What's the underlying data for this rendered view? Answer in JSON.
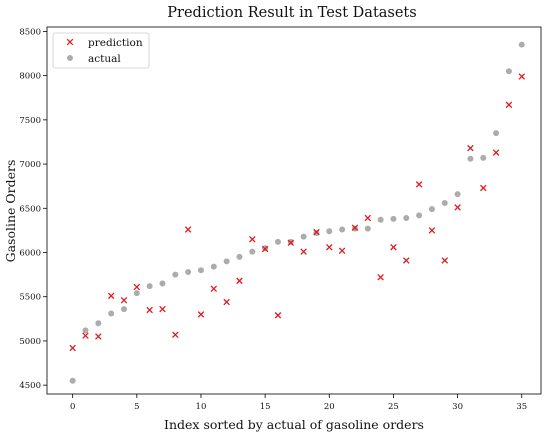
{
  "chart_data": {
    "type": "scatter",
    "title": "Prediction Result in Test Datasets",
    "xlabel": "Index sorted by actual of gasoline orders",
    "ylabel": "Gasoline Orders",
    "xlim": [
      -2,
      36.5
    ],
    "ylim": [
      4400,
      8550
    ],
    "xticks": [
      0,
      5,
      10,
      15,
      20,
      25,
      30,
      35
    ],
    "yticks": [
      4500,
      5000,
      5500,
      6000,
      6500,
      7000,
      7500,
      8000,
      8500
    ],
    "grid": false,
    "legend": "top-left",
    "colors": {
      "prediction": "#e31a1c",
      "actual": "#9e9e9e"
    },
    "series": [
      {
        "name": "prediction",
        "marker": "x",
        "x": [
          0,
          1,
          2,
          3,
          4,
          5,
          6,
          7,
          8,
          9,
          10,
          11,
          12,
          13,
          14,
          15,
          16,
          17,
          18,
          19,
          20,
          21,
          22,
          23,
          24,
          25,
          26,
          27,
          28,
          29,
          30,
          31,
          32,
          33,
          34,
          35
        ],
        "y": [
          4920,
          5060,
          5050,
          5510,
          5460,
          5610,
          5350,
          5360,
          5070,
          6260,
          5300,
          5590,
          5440,
          5680,
          6150,
          6040,
          5290,
          6110,
          6010,
          6230,
          6060,
          6020,
          6280,
          6390,
          5720,
          6060,
          5910,
          6770,
          6250,
          5910,
          6510,
          7180,
          6730,
          7130,
          7670,
          7990
        ]
      },
      {
        "name": "actual",
        "marker": "o",
        "x": [
          0,
          1,
          2,
          3,
          4,
          5,
          6,
          7,
          8,
          9,
          10,
          11,
          12,
          13,
          14,
          15,
          16,
          17,
          18,
          19,
          20,
          21,
          22,
          23,
          24,
          25,
          26,
          27,
          28,
          29,
          30,
          31,
          32,
          33,
          34,
          35
        ],
        "y": [
          4550,
          5120,
          5200,
          5310,
          5360,
          5540,
          5620,
          5650,
          5750,
          5780,
          5800,
          5840,
          5900,
          5950,
          6010,
          6050,
          6120,
          6120,
          6180,
          6220,
          6240,
          6260,
          6270,
          6270,
          6370,
          6380,
          6390,
          6420,
          6490,
          6560,
          6660,
          7060,
          7070,
          7350,
          8050,
          8350
        ]
      }
    ]
  }
}
